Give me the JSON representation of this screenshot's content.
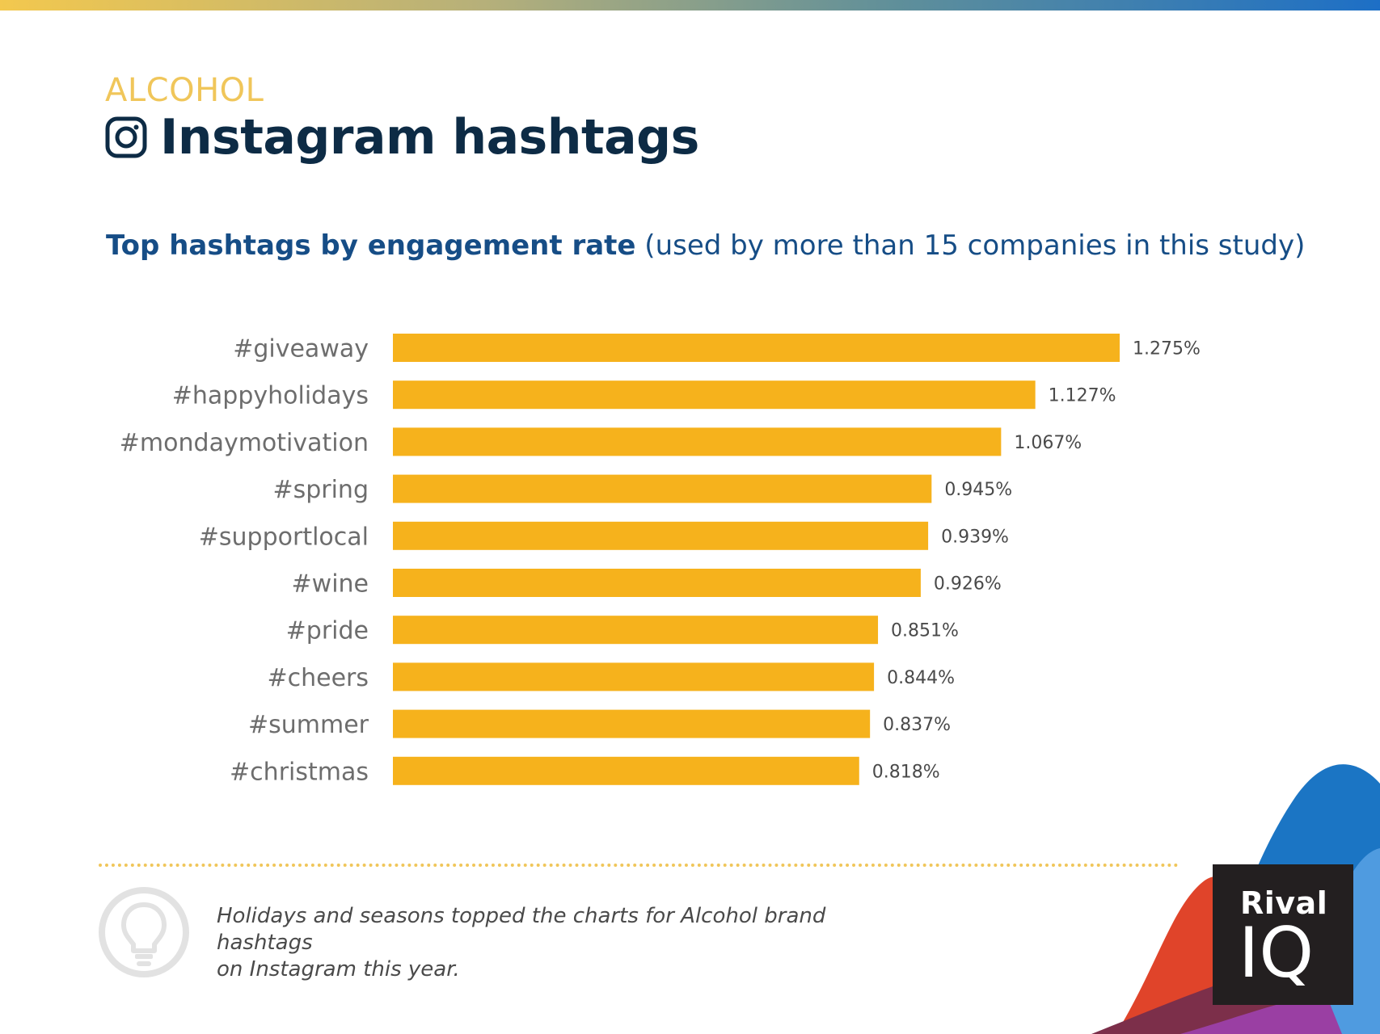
{
  "header": {
    "category": "ALCOHOL",
    "title": "Instagram hashtags",
    "subtitle_bold": "Top hashtags by engagement rate",
    "subtitle_rest": " (used by more than 15 companies in this study)"
  },
  "chart_data": {
    "type": "bar",
    "orientation": "horizontal",
    "title": "Top hashtags by engagement rate (used by more than 15 companies in this study)",
    "categories": [
      "#giveaway",
      "#happyholidays",
      "#mondaymotivation",
      "#spring",
      "#supportlocal",
      "#wine",
      "#pride",
      "#cheers",
      "#summer",
      "#christmas"
    ],
    "values": [
      1.275,
      1.127,
      1.067,
      0.945,
      0.939,
      0.926,
      0.851,
      0.844,
      0.837,
      0.818
    ],
    "value_labels": [
      "1.275%",
      "1.127%",
      "1.067%",
      "0.945%",
      "0.939%",
      "0.926%",
      "0.851%",
      "0.844%",
      "0.837%",
      "0.818%"
    ],
    "xlim": [
      0,
      1.275
    ],
    "bar_color": "#f6b21c",
    "xlabel": "",
    "ylabel": ""
  },
  "footer": {
    "note_line1": "Holidays and seasons topped the charts for Alcohol brand hashtags",
    "note_line2": "on Instagram this year.",
    "logo_top": "Rival",
    "logo_bottom": "IQ"
  },
  "colors": {
    "accent_yellow": "#f0c65a",
    "title_navy": "#0d2b45",
    "subtitle_blue": "#164d86",
    "bar": "#f6b21c",
    "label_gray": "#6d6d6d"
  }
}
